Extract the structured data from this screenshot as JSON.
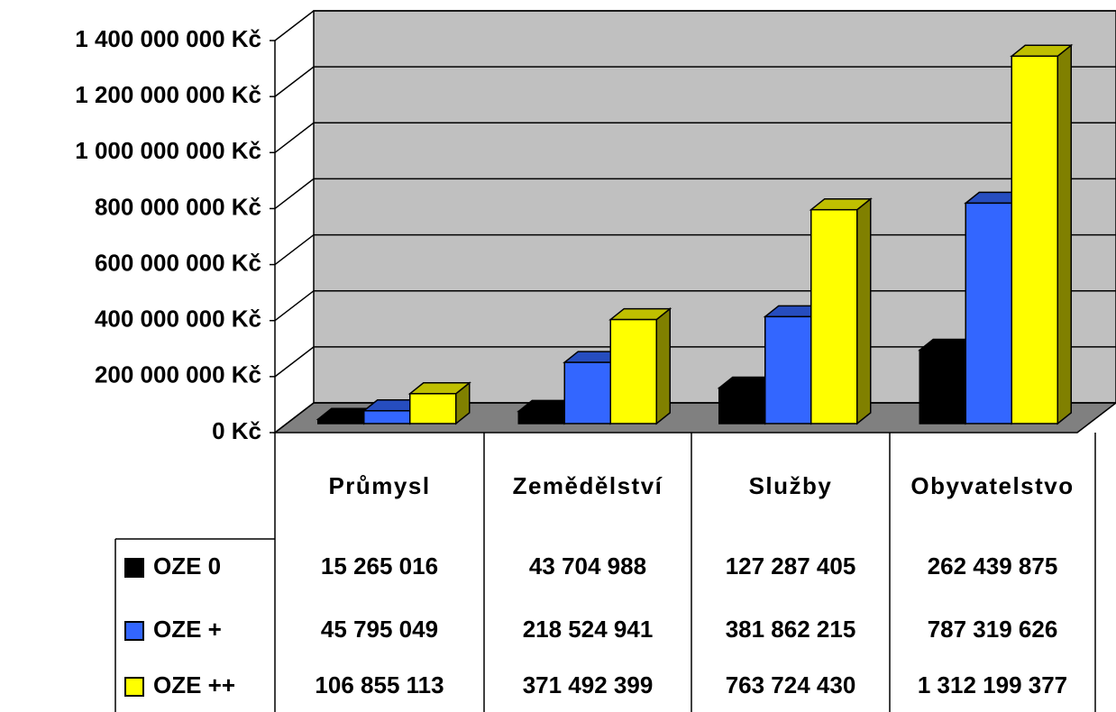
{
  "chart_data": {
    "type": "bar3d",
    "categories": [
      "Průmysl",
      "Zemědělství",
      "Služby",
      "Obyvatelstvo"
    ],
    "series": [
      {
        "name": "OZE 0",
        "color": "#000000",
        "values": [
          15265016,
          43704988,
          127287405,
          262439875
        ],
        "value_labels": [
          "15 265 016",
          "43 704 988",
          "127 287 405",
          "262 439 875"
        ]
      },
      {
        "name": "OZE +",
        "color": "#3366ff",
        "values": [
          45795049,
          218524941,
          381862215,
          787319626
        ],
        "value_labels": [
          "45 795 049",
          "218 524 941",
          "381 862 215",
          "787 319 626"
        ]
      },
      {
        "name": "OZE ++",
        "color": "#ffff00",
        "values": [
          106855113,
          371492399,
          763724430,
          1312199377
        ],
        "value_labels": [
          "106 855 113",
          "371 492 399",
          "763 724 430",
          "1 312 199 377"
        ]
      }
    ],
    "ylim": [
      0,
      1400000000
    ],
    "yticks": [
      {
        "value": 0,
        "label": "0 Kč"
      },
      {
        "value": 200000000,
        "label": "200 000 000 Kč"
      },
      {
        "value": 400000000,
        "label": "400 000 000 Kč"
      },
      {
        "value": 600000000,
        "label": "600 000 000 Kč"
      },
      {
        "value": 800000000,
        "label": "800 000 000 Kč"
      },
      {
        "value": 1000000000,
        "label": "1 000 000 000 Kč"
      },
      {
        "value": 1200000000,
        "label": "1 200 000 000 Kč"
      },
      {
        "value": 1400000000,
        "label": "1 400 000 000 Kč"
      }
    ],
    "grid": true,
    "wall_color": "#c0c0c0",
    "floor_color": "#808080"
  }
}
